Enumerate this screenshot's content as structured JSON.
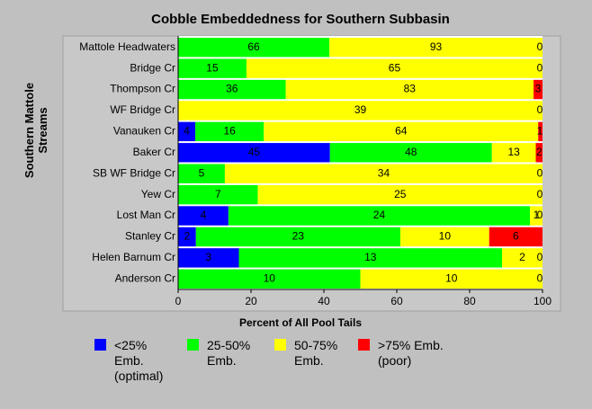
{
  "chart_data": {
    "type": "bar",
    "orientation": "horizontal",
    "stack": "percent",
    "title": "Cobble Embeddedness for Southern Subbasin",
    "x_label": "Percent of All Pool Tails",
    "y_label": "Southern Mattole Streams",
    "categories": [
      "Mattole Headwaters",
      "Bridge Cr",
      "Thompson Cr",
      "WF Bridge Cr",
      "Vanauken Cr",
      "Baker Cr",
      "SB WF Bridge Cr",
      "Yew Cr",
      "Lost Man Cr",
      "Stanley Cr",
      "Helen Barnum Cr",
      "Anderson Cr"
    ],
    "series": [
      {
        "name": "<25% Emb. (optimal)",
        "color": "#0000ff",
        "values": [
          0,
          0,
          0,
          0,
          4,
          45,
          0,
          0,
          4,
          2,
          3,
          0
        ]
      },
      {
        "name": "25-50% Emb.",
        "color": "#00ff00",
        "values": [
          66,
          15,
          36,
          0,
          16,
          48,
          5,
          7,
          24,
          23,
          13,
          10
        ]
      },
      {
        "name": "50-75% Emb.",
        "color": "#ffff00",
        "values": [
          93,
          65,
          83,
          39,
          64,
          13,
          34,
          25,
          1,
          10,
          2,
          10
        ]
      },
      {
        "name": ">75% Emb.(poor)",
        "color": "#ff0000",
        "values": [
          0,
          0,
          3,
          0,
          1,
          2,
          0,
          0,
          0,
          6,
          0,
          0
        ]
      }
    ],
    "xlim": [
      0,
      100
    ],
    "xticks": [
      0,
      20,
      40,
      60,
      80,
      100
    ],
    "legend": "bottom"
  }
}
